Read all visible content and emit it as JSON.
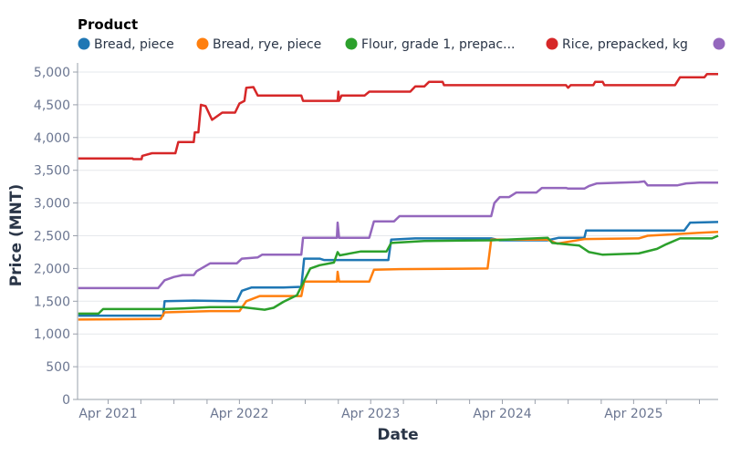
{
  "chart_data": {
    "type": "line",
    "title": "",
    "xlabel": "Date",
    "ylabel": "Price (MNT)",
    "x_type": "date",
    "xlim": [
      "2021-01-06",
      "2025-11-22"
    ],
    "ylim": [
      0,
      5000
    ],
    "y_ticks": [
      0,
      500,
      1000,
      1500,
      2000,
      2500,
      3000,
      3500,
      4000,
      4500,
      5000
    ],
    "y_tick_labels": [
      "0",
      "500",
      "1,000",
      "1,500",
      "2,000",
      "2,500",
      "3,000",
      "3,500",
      "4,000",
      "4,500",
      "5,000"
    ],
    "x_tick_labels": [
      "Apr 2021",
      "Apr 2022",
      "Apr 2023",
      "Apr 2024",
      "Apr 2025"
    ],
    "x_minor_ticks": "quarterly",
    "grid": true,
    "legend": {
      "title": "Product",
      "placement": "top",
      "entries": [
        "Bread, piece",
        "Bread, rye, piece",
        "Flour, grade 1, prepac...",
        "Rice, prepacked, kg",
        ""
      ]
    },
    "series": [
      {
        "name": "Bread, piece",
        "color": "#1f77b4",
        "points": [
          [
            "2021-01-08",
            1280
          ],
          [
            "2021-09-01",
            1280
          ],
          [
            "2021-09-05",
            1500
          ],
          [
            "2021-11-25",
            1510
          ],
          [
            "2022-03-25",
            1500
          ],
          [
            "2022-04-08",
            1660
          ],
          [
            "2022-05-05",
            1710
          ],
          [
            "2022-08-01",
            1710
          ],
          [
            "2022-09-20",
            1720
          ],
          [
            "2022-09-28",
            2150
          ],
          [
            "2022-11-10",
            2150
          ],
          [
            "2022-11-22",
            2130
          ],
          [
            "2023-05-20",
            2130
          ],
          [
            "2023-05-28",
            2440
          ],
          [
            "2023-08-03",
            2460
          ],
          [
            "2024-03-01",
            2460
          ],
          [
            "2024-03-25",
            2430
          ],
          [
            "2024-08-05",
            2430
          ],
          [
            "2024-09-05",
            2470
          ],
          [
            "2024-11-15",
            2470
          ],
          [
            "2024-11-20",
            2580
          ],
          [
            "2025-04-15",
            2580
          ],
          [
            "2025-08-20",
            2580
          ],
          [
            "2025-09-05",
            2700
          ],
          [
            "2025-11-22",
            2710
          ]
        ]
      },
      {
        "name": "Bread, rye, piece",
        "color": "#ff7f0e",
        "points": [
          [
            "2021-01-08",
            1220
          ],
          [
            "2021-08-25",
            1230
          ],
          [
            "2021-09-05",
            1330
          ],
          [
            "2022-01-10",
            1350
          ],
          [
            "2022-04-01",
            1350
          ],
          [
            "2022-04-20",
            1500
          ],
          [
            "2022-05-28",
            1580
          ],
          [
            "2022-09-20",
            1580
          ],
          [
            "2022-09-28",
            1800
          ],
          [
            "2022-12-28",
            1800
          ],
          [
            "2022-12-30",
            1950
          ],
          [
            "2023-01-03",
            1800
          ],
          [
            "2023-03-28",
            1800
          ],
          [
            "2023-04-10",
            1980
          ],
          [
            "2023-06-20",
            1990
          ],
          [
            "2024-02-20",
            2000
          ],
          [
            "2024-03-01",
            2440
          ],
          [
            "2024-08-05",
            2440
          ],
          [
            "2024-09-01",
            2380
          ],
          [
            "2024-11-15",
            2450
          ],
          [
            "2025-04-15",
            2460
          ],
          [
            "2025-05-10",
            2500
          ],
          [
            "2025-09-15",
            2540
          ],
          [
            "2025-11-22",
            2560
          ]
        ]
      },
      {
        "name": "Flour, grade 1, prepac...",
        "color": "#2ca02c",
        "points": [
          [
            "2021-01-08",
            1310
          ],
          [
            "2021-03-05",
            1310
          ],
          [
            "2021-03-18",
            1380
          ],
          [
            "2021-09-01",
            1380
          ],
          [
            "2021-10-25",
            1390
          ],
          [
            "2022-01-10",
            1410
          ],
          [
            "2022-04-08",
            1410
          ],
          [
            "2022-06-10",
            1370
          ],
          [
            "2022-07-05",
            1400
          ],
          [
            "2022-08-01",
            1490
          ],
          [
            "2022-09-08",
            1590
          ],
          [
            "2022-10-15",
            2000
          ],
          [
            "2022-11-10",
            2050
          ],
          [
            "2022-12-20",
            2090
          ],
          [
            "2022-12-30",
            2250
          ],
          [
            "2023-01-05",
            2200
          ],
          [
            "2023-03-05",
            2260
          ],
          [
            "2023-05-15",
            2260
          ],
          [
            "2023-05-28",
            2390
          ],
          [
            "2023-08-28",
            2420
          ],
          [
            "2024-03-01",
            2430
          ],
          [
            "2024-08-05",
            2470
          ],
          [
            "2024-08-18",
            2390
          ],
          [
            "2024-11-01",
            2350
          ],
          [
            "2024-11-28",
            2250
          ],
          [
            "2025-01-05",
            2210
          ],
          [
            "2025-04-15",
            2230
          ],
          [
            "2025-06-05",
            2300
          ],
          [
            "2025-07-01",
            2370
          ],
          [
            "2025-08-08",
            2460
          ],
          [
            "2025-11-05",
            2460
          ],
          [
            "2025-11-22",
            2500
          ]
        ]
      },
      {
        "name": "Rice, prepacked, kg",
        "color": "#d62728",
        "points": [
          [
            "2021-01-08",
            3680
          ],
          [
            "2021-06-08",
            3680
          ],
          [
            "2021-06-10",
            3670
          ],
          [
            "2021-07-03",
            3670
          ],
          [
            "2021-07-05",
            3720
          ],
          [
            "2021-08-01",
            3760
          ],
          [
            "2021-10-05",
            3760
          ],
          [
            "2021-10-13",
            3930
          ],
          [
            "2021-11-25",
            3930
          ],
          [
            "2021-11-28",
            4080
          ],
          [
            "2021-12-08",
            4080
          ],
          [
            "2021-12-15",
            4500
          ],
          [
            "2021-12-28",
            4480
          ],
          [
            "2022-01-15",
            4270
          ],
          [
            "2022-02-12",
            4380
          ],
          [
            "2022-03-20",
            4380
          ],
          [
            "2022-04-01",
            4520
          ],
          [
            "2022-04-15",
            4560
          ],
          [
            "2022-04-20",
            4760
          ],
          [
            "2022-05-10",
            4770
          ],
          [
            "2022-05-22",
            4640
          ],
          [
            "2022-09-20",
            4640
          ],
          [
            "2022-09-25",
            4560
          ],
          [
            "2022-12-30",
            4560
          ],
          [
            "2023-01-01",
            4700
          ],
          [
            "2023-01-03",
            4560
          ],
          [
            "2023-01-10",
            4640
          ],
          [
            "2023-03-15",
            4640
          ],
          [
            "2023-03-28",
            4700
          ],
          [
            "2023-07-20",
            4700
          ],
          [
            "2023-08-03",
            4780
          ],
          [
            "2023-08-28",
            4780
          ],
          [
            "2023-09-10",
            4850
          ],
          [
            "2023-10-18",
            4850
          ],
          [
            "2023-10-22",
            4800
          ],
          [
            "2024-09-25",
            4800
          ],
          [
            "2024-10-01",
            4760
          ],
          [
            "2024-10-08",
            4800
          ],
          [
            "2024-12-10",
            4800
          ],
          [
            "2024-12-15",
            4850
          ],
          [
            "2025-01-05",
            4850
          ],
          [
            "2025-01-10",
            4800
          ],
          [
            "2025-07-25",
            4800
          ],
          [
            "2025-08-08",
            4920
          ],
          [
            "2025-10-15",
            4920
          ],
          [
            "2025-10-22",
            4970
          ],
          [
            "2025-11-22",
            4970
          ]
        ]
      },
      {
        "color": "#9467bd",
        "points": [
          [
            "2021-01-08",
            1700
          ],
          [
            "2021-08-18",
            1700
          ],
          [
            "2021-09-05",
            1820
          ],
          [
            "2021-10-01",
            1870
          ],
          [
            "2021-10-25",
            1900
          ],
          [
            "2021-11-25",
            1900
          ],
          [
            "2021-12-03",
            1960
          ],
          [
            "2022-01-10",
            2080
          ],
          [
            "2022-03-25",
            2080
          ],
          [
            "2022-04-08",
            2150
          ],
          [
            "2022-05-22",
            2170
          ],
          [
            "2022-06-03",
            2210
          ],
          [
            "2022-09-20",
            2210
          ],
          [
            "2022-09-25",
            2470
          ],
          [
            "2022-12-28",
            2470
          ],
          [
            "2022-12-30",
            2700
          ],
          [
            "2023-01-03",
            2470
          ],
          [
            "2023-03-28",
            2470
          ],
          [
            "2023-04-10",
            2720
          ],
          [
            "2023-06-05",
            2720
          ],
          [
            "2023-06-20",
            2800
          ],
          [
            "2024-03-01",
            2800
          ],
          [
            "2024-03-10",
            3000
          ],
          [
            "2024-03-25",
            3090
          ],
          [
            "2024-04-20",
            3090
          ],
          [
            "2024-05-10",
            3160
          ],
          [
            "2024-07-05",
            3160
          ],
          [
            "2024-07-20",
            3230
          ],
          [
            "2024-09-25",
            3230
          ],
          [
            "2024-10-01",
            3220
          ],
          [
            "2024-11-15",
            3220
          ],
          [
            "2024-11-28",
            3260
          ],
          [
            "2024-12-20",
            3300
          ],
          [
            "2025-04-15",
            3320
          ],
          [
            "2025-05-01",
            3330
          ],
          [
            "2025-05-10",
            3270
          ],
          [
            "2025-08-01",
            3270
          ],
          [
            "2025-08-25",
            3300
          ],
          [
            "2025-10-01",
            3310
          ],
          [
            "2025-11-22",
            3310
          ]
        ]
      }
    ]
  }
}
